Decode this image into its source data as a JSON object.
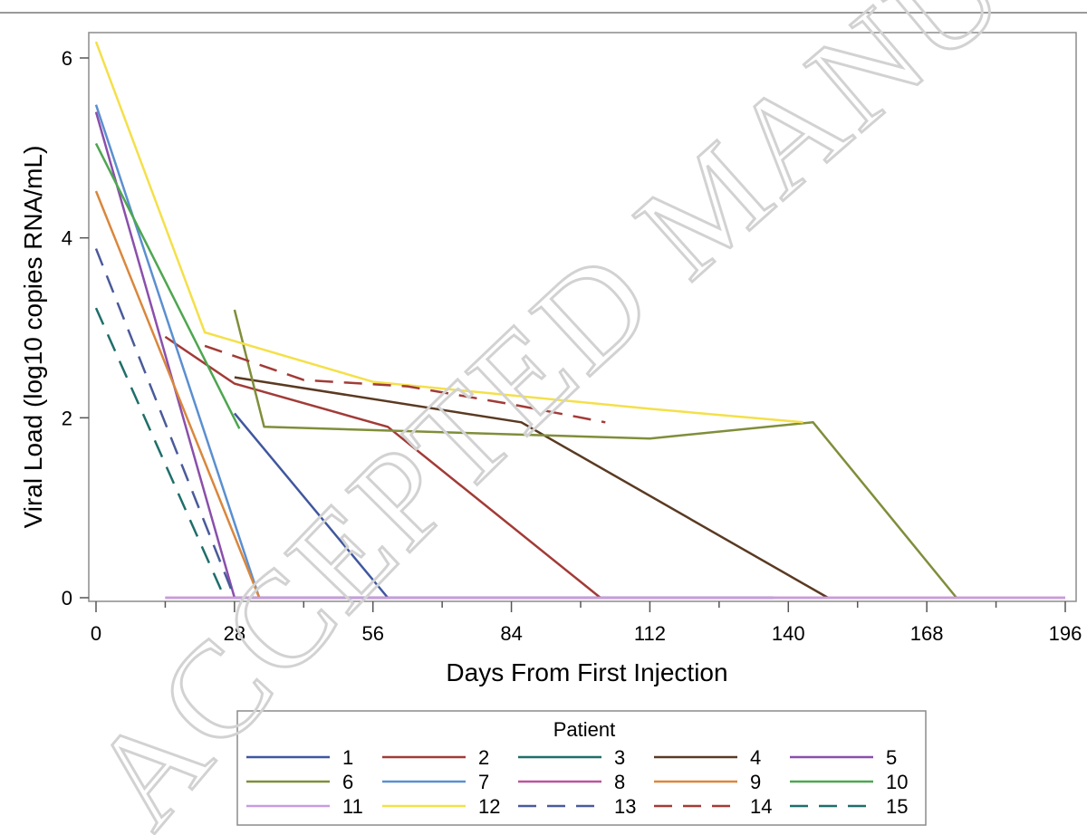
{
  "chart_data": {
    "type": "line",
    "title": "",
    "xlabel": "Days From First Injection",
    "ylabel": "Viral Load (log10 copies RNA/mL)",
    "xlim": [
      0,
      196
    ],
    "ylim": [
      0,
      6
    ],
    "xticks": [
      0,
      28,
      56,
      84,
      112,
      140,
      168,
      196
    ],
    "yticks": [
      0,
      2,
      4,
      6
    ],
    "grid": false,
    "legend_title": "Patient",
    "legend_position": "bottom",
    "series": [
      {
        "name": "1",
        "color": "#3f57a0",
        "dash": "solid",
        "points": [
          [
            28,
            2.05
          ],
          [
            59,
            0
          ]
        ]
      },
      {
        "name": "2",
        "color": "#a23b37",
        "dash": "solid",
        "points": [
          [
            14,
            2.9
          ],
          [
            28,
            2.38
          ],
          [
            59,
            1.9
          ],
          [
            102,
            0
          ]
        ]
      },
      {
        "name": "3",
        "color": "#1f6e6a",
        "dash": "solid",
        "points": [
          [
            28,
            0
          ],
          [
            137,
            0
          ]
        ]
      },
      {
        "name": "4",
        "color": "#5a3a22",
        "dash": "solid",
        "points": [
          [
            28,
            2.45
          ],
          [
            86,
            1.95
          ],
          [
            148,
            0
          ]
        ]
      },
      {
        "name": "5",
        "color": "#8a4fab",
        "dash": "solid",
        "points": [
          [
            0,
            5.4
          ],
          [
            28,
            0
          ]
        ]
      },
      {
        "name": "6",
        "color": "#7f8e3a",
        "dash": "solid",
        "points": [
          [
            28,
            3.2
          ],
          [
            34,
            1.9
          ],
          [
            112,
            1.77
          ],
          [
            145,
            1.95
          ],
          [
            174,
            0
          ]
        ]
      },
      {
        "name": "7",
        "color": "#5b8fd0",
        "dash": "solid",
        "points": [
          [
            0,
            5.48
          ],
          [
            33,
            0
          ]
        ]
      },
      {
        "name": "8",
        "color": "#b9569c",
        "dash": "solid",
        "points": [
          [
            14,
            0
          ],
          [
            196,
            0
          ]
        ]
      },
      {
        "name": "9",
        "color": "#d9873c",
        "dash": "solid",
        "points": [
          [
            0,
            4.52
          ],
          [
            33,
            0
          ]
        ]
      },
      {
        "name": "10",
        "color": "#4ea650",
        "dash": "solid",
        "points": [
          [
            0,
            5.05
          ],
          [
            29,
            1.88
          ]
        ]
      },
      {
        "name": "11",
        "color": "#c79ce0",
        "dash": "solid",
        "points": [
          [
            14,
            0
          ],
          [
            196,
            0
          ]
        ]
      },
      {
        "name": "12",
        "color": "#f4e04a",
        "dash": "solid",
        "points": [
          [
            0,
            6.18
          ],
          [
            22,
            2.95
          ],
          [
            56,
            2.4
          ],
          [
            112,
            2.1
          ],
          [
            143,
            1.95
          ]
        ]
      },
      {
        "name": "13",
        "color": "#4a5a9a",
        "dash": "dashed",
        "points": [
          [
            0,
            3.88
          ],
          [
            28,
            0
          ]
        ]
      },
      {
        "name": "14",
        "color": "#a23b37",
        "dash": "dashed",
        "points": [
          [
            22,
            2.8
          ],
          [
            42,
            2.42
          ],
          [
            63,
            2.35
          ],
          [
            84,
            2.15
          ],
          [
            103,
            1.95
          ]
        ]
      },
      {
        "name": "15",
        "color": "#1f6e6a",
        "dash": "dashed",
        "points": [
          [
            0,
            3.22
          ],
          [
            26,
            0
          ]
        ]
      }
    ]
  },
  "watermark": {
    "text": "ACCEPTED MANUSCRIPT",
    "color": "#d2d2d2"
  }
}
